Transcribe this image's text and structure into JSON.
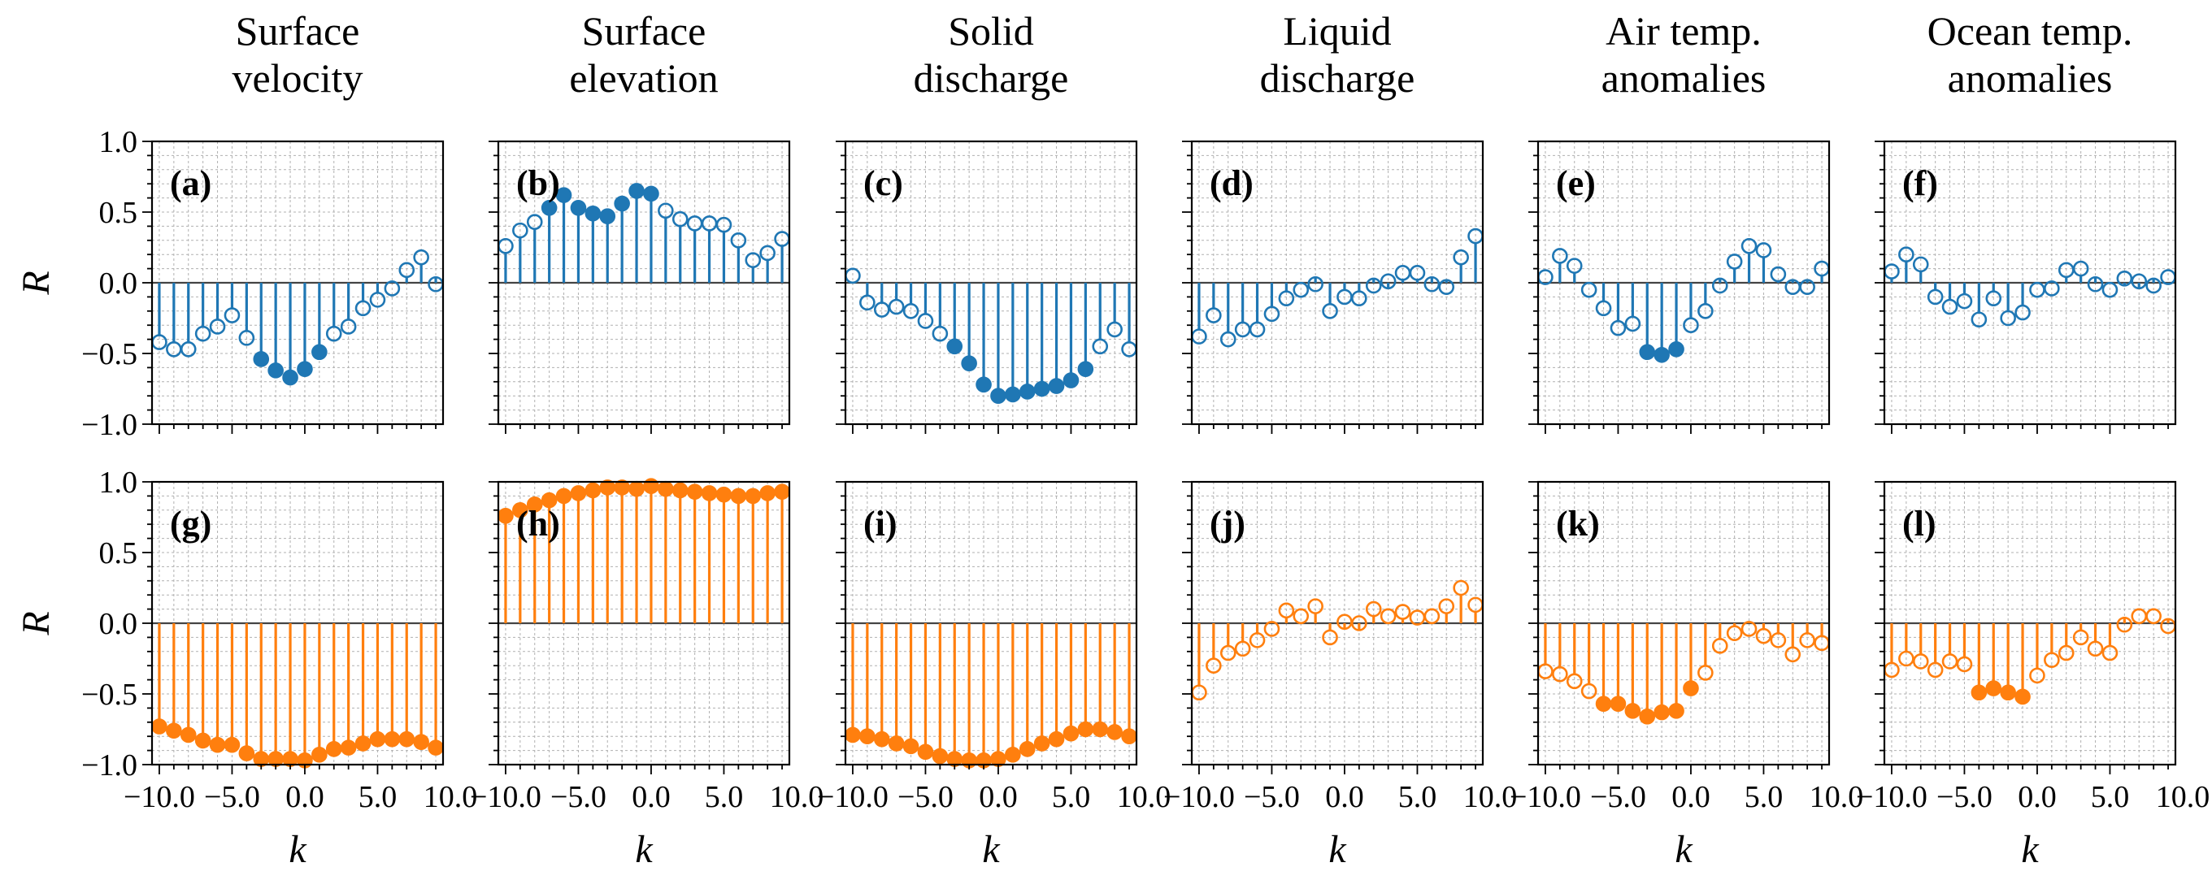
{
  "colors": {
    "top_row": "#1f77b4",
    "bottom_row": "#ff7f0e",
    "axis": "#000000",
    "grid": "#b0b0b0"
  },
  "column_titles": [
    [
      "Surface",
      "velocity"
    ],
    [
      "Surface",
      "elevation"
    ],
    [
      "Solid",
      "discharge"
    ],
    [
      "Liquid",
      "discharge"
    ],
    [
      "Air temp.",
      "anomalies"
    ],
    [
      "Ocean temp.",
      "anomalies"
    ]
  ],
  "ylabel": "R",
  "xlabel": "k",
  "xticks": [
    -10.0,
    -5.0,
    0.0,
    5.0,
    10.0
  ],
  "xtick_labels": [
    "−10.0",
    "−5.0",
    "0.0",
    "5.0",
    "10.0"
  ],
  "yticks": [
    -1.0,
    -0.5,
    0.0,
    0.5,
    1.0
  ],
  "ytick_labels": [
    "−1.0",
    "−0.5",
    "0.0",
    "0.5",
    "1.0"
  ],
  "chart_data": [
    {
      "type": "stem",
      "panel_label": "(a)",
      "row": 0,
      "col": 0,
      "xlim": [
        -10.5,
        9.5
      ],
      "ylim": [
        -1,
        1
      ],
      "grid": true,
      "x_start": -10,
      "values": [
        -0.42,
        -0.47,
        -0.47,
        -0.36,
        -0.31,
        -0.23,
        -0.39,
        -0.54,
        -0.62,
        -0.67,
        -0.61,
        -0.49,
        -0.36,
        -0.31,
        -0.18,
        -0.12,
        -0.04,
        0.09,
        0.18,
        -0.01
      ],
      "filled": [
        false,
        false,
        false,
        false,
        false,
        false,
        false,
        true,
        true,
        true,
        true,
        true,
        false,
        false,
        false,
        false,
        false,
        false,
        false,
        false
      ]
    },
    {
      "type": "stem",
      "panel_label": "(b)",
      "row": 0,
      "col": 1,
      "xlim": [
        -10.5,
        9.5
      ],
      "ylim": [
        -1,
        1
      ],
      "grid": true,
      "x_start": -10,
      "values": [
        0.26,
        0.37,
        0.43,
        0.53,
        0.62,
        0.53,
        0.49,
        0.47,
        0.56,
        0.65,
        0.63,
        0.51,
        0.45,
        0.42,
        0.42,
        0.41,
        0.3,
        0.16,
        0.21,
        0.31
      ],
      "filled": [
        false,
        false,
        false,
        true,
        true,
        true,
        true,
        true,
        true,
        true,
        true,
        false,
        false,
        false,
        false,
        false,
        false,
        false,
        false,
        false
      ]
    },
    {
      "type": "stem",
      "panel_label": "(c)",
      "row": 0,
      "col": 2,
      "xlim": [
        -10.5,
        9.5
      ],
      "ylim": [
        -1,
        1
      ],
      "grid": true,
      "x_start": -10,
      "values": [
        0.05,
        -0.14,
        -0.19,
        -0.17,
        -0.2,
        -0.27,
        -0.36,
        -0.45,
        -0.57,
        -0.72,
        -0.8,
        -0.79,
        -0.77,
        -0.75,
        -0.73,
        -0.69,
        -0.61,
        -0.45,
        -0.33,
        -0.47
      ],
      "filled": [
        false,
        false,
        false,
        false,
        false,
        false,
        false,
        true,
        true,
        true,
        true,
        true,
        true,
        true,
        true,
        true,
        true,
        false,
        false,
        false
      ]
    },
    {
      "type": "stem",
      "panel_label": "(d)",
      "row": 0,
      "col": 3,
      "xlim": [
        -10.5,
        9.5
      ],
      "ylim": [
        -1,
        1
      ],
      "grid": true,
      "x_start": -10,
      "values": [
        -0.38,
        -0.23,
        -0.4,
        -0.33,
        -0.33,
        -0.22,
        -0.11,
        -0.05,
        -0.01,
        -0.2,
        -0.1,
        -0.11,
        -0.02,
        0.01,
        0.07,
        0.07,
        -0.01,
        -0.03,
        0.18,
        0.33
      ],
      "filled": [
        false,
        false,
        false,
        false,
        false,
        false,
        false,
        false,
        false,
        false,
        false,
        false,
        false,
        false,
        false,
        false,
        false,
        false,
        false,
        false
      ]
    },
    {
      "type": "stem",
      "panel_label": "(e)",
      "row": 0,
      "col": 4,
      "xlim": [
        -10.5,
        9.5
      ],
      "ylim": [
        -1,
        1
      ],
      "grid": true,
      "x_start": -10,
      "values": [
        0.04,
        0.19,
        0.12,
        -0.05,
        -0.18,
        -0.32,
        -0.29,
        -0.49,
        -0.51,
        -0.47,
        -0.3,
        -0.2,
        -0.02,
        0.15,
        0.26,
        0.23,
        0.06,
        -0.03,
        -0.03,
        0.1
      ],
      "filled": [
        false,
        false,
        false,
        false,
        false,
        false,
        false,
        true,
        true,
        true,
        false,
        false,
        false,
        false,
        false,
        false,
        false,
        false,
        false,
        false
      ]
    },
    {
      "type": "stem",
      "panel_label": "(f)",
      "row": 0,
      "col": 5,
      "xlim": [
        -10.5,
        9.5
      ],
      "ylim": [
        -1,
        1
      ],
      "grid": true,
      "x_start": -10,
      "values": [
        0.08,
        0.2,
        0.13,
        -0.1,
        -0.17,
        -0.13,
        -0.26,
        -0.11,
        -0.25,
        -0.21,
        -0.05,
        -0.04,
        0.09,
        0.1,
        -0.01,
        -0.05,
        0.03,
        0.01,
        -0.02,
        0.04
      ],
      "filled": [
        false,
        false,
        false,
        false,
        false,
        false,
        false,
        false,
        false,
        false,
        false,
        false,
        false,
        false,
        false,
        false,
        false,
        false,
        false,
        false
      ]
    },
    {
      "type": "stem",
      "panel_label": "(g)",
      "row": 1,
      "col": 0,
      "xlim": [
        -10.5,
        9.5
      ],
      "ylim": [
        -1,
        1
      ],
      "grid": true,
      "x_start": -10,
      "values": [
        -0.73,
        -0.76,
        -0.79,
        -0.83,
        -0.86,
        -0.86,
        -0.92,
        -0.96,
        -0.96,
        -0.96,
        -0.97,
        -0.93,
        -0.89,
        -0.88,
        -0.85,
        -0.82,
        -0.82,
        -0.82,
        -0.84,
        -0.88
      ],
      "filled": [
        true,
        true,
        true,
        true,
        true,
        true,
        true,
        true,
        true,
        true,
        true,
        true,
        true,
        true,
        true,
        true,
        true,
        true,
        true,
        true
      ]
    },
    {
      "type": "stem",
      "panel_label": "(h)",
      "row": 1,
      "col": 1,
      "xlim": [
        -10.5,
        9.5
      ],
      "ylim": [
        -1,
        1
      ],
      "grid": true,
      "x_start": -10,
      "values": [
        0.76,
        0.8,
        0.84,
        0.87,
        0.9,
        0.92,
        0.94,
        0.96,
        0.96,
        0.95,
        0.97,
        0.95,
        0.94,
        0.93,
        0.92,
        0.91,
        0.9,
        0.9,
        0.92,
        0.93
      ],
      "filled": [
        true,
        true,
        true,
        true,
        true,
        true,
        true,
        true,
        true,
        true,
        true,
        true,
        true,
        true,
        true,
        true,
        true,
        true,
        true,
        true
      ]
    },
    {
      "type": "stem",
      "panel_label": "(i)",
      "row": 1,
      "col": 2,
      "xlim": [
        -10.5,
        9.5
      ],
      "ylim": [
        -1,
        1
      ],
      "grid": true,
      "x_start": -10,
      "values": [
        -0.79,
        -0.8,
        -0.82,
        -0.85,
        -0.87,
        -0.91,
        -0.94,
        -0.96,
        -0.97,
        -0.97,
        -0.96,
        -0.93,
        -0.89,
        -0.85,
        -0.82,
        -0.78,
        -0.75,
        -0.75,
        -0.77,
        -0.8
      ],
      "filled": [
        true,
        true,
        true,
        true,
        true,
        true,
        true,
        true,
        true,
        true,
        true,
        true,
        true,
        true,
        true,
        true,
        true,
        true,
        true,
        true
      ]
    },
    {
      "type": "stem",
      "panel_label": "(j)",
      "row": 1,
      "col": 3,
      "xlim": [
        -10.5,
        9.5
      ],
      "ylim": [
        -1,
        1
      ],
      "grid": true,
      "x_start": -10,
      "values": [
        -0.49,
        -0.3,
        -0.21,
        -0.18,
        -0.12,
        -0.04,
        0.09,
        0.05,
        0.12,
        -0.1,
        0.01,
        0.0,
        0.1,
        0.05,
        0.08,
        0.04,
        0.05,
        0.12,
        0.25,
        0.13
      ],
      "filled": [
        false,
        false,
        false,
        false,
        false,
        false,
        false,
        false,
        false,
        false,
        false,
        false,
        false,
        false,
        false,
        false,
        false,
        false,
        false,
        false
      ]
    },
    {
      "type": "stem",
      "panel_label": "(k)",
      "row": 1,
      "col": 4,
      "xlim": [
        -10.5,
        9.5
      ],
      "ylim": [
        -1,
        1
      ],
      "grid": true,
      "x_start": -10,
      "values": [
        -0.34,
        -0.36,
        -0.41,
        -0.48,
        -0.57,
        -0.57,
        -0.62,
        -0.66,
        -0.63,
        -0.62,
        -0.46,
        -0.35,
        -0.16,
        -0.07,
        -0.04,
        -0.09,
        -0.12,
        -0.22,
        -0.12,
        -0.14
      ],
      "filled": [
        false,
        false,
        false,
        false,
        true,
        true,
        true,
        true,
        true,
        true,
        true,
        false,
        false,
        false,
        false,
        false,
        false,
        false,
        false,
        false
      ]
    },
    {
      "type": "stem",
      "panel_label": "(l)",
      "row": 1,
      "col": 5,
      "xlim": [
        -10.5,
        9.5
      ],
      "ylim": [
        -1,
        1
      ],
      "grid": true,
      "x_start": -10,
      "values": [
        -0.33,
        -0.25,
        -0.27,
        -0.33,
        -0.27,
        -0.29,
        -0.49,
        -0.46,
        -0.49,
        -0.52,
        -0.37,
        -0.26,
        -0.21,
        -0.1,
        -0.18,
        -0.21,
        -0.01,
        0.05,
        0.05,
        -0.02
      ],
      "filled": [
        false,
        false,
        false,
        false,
        false,
        false,
        true,
        true,
        true,
        true,
        false,
        false,
        false,
        false,
        false,
        false,
        false,
        false,
        false,
        false
      ]
    }
  ]
}
